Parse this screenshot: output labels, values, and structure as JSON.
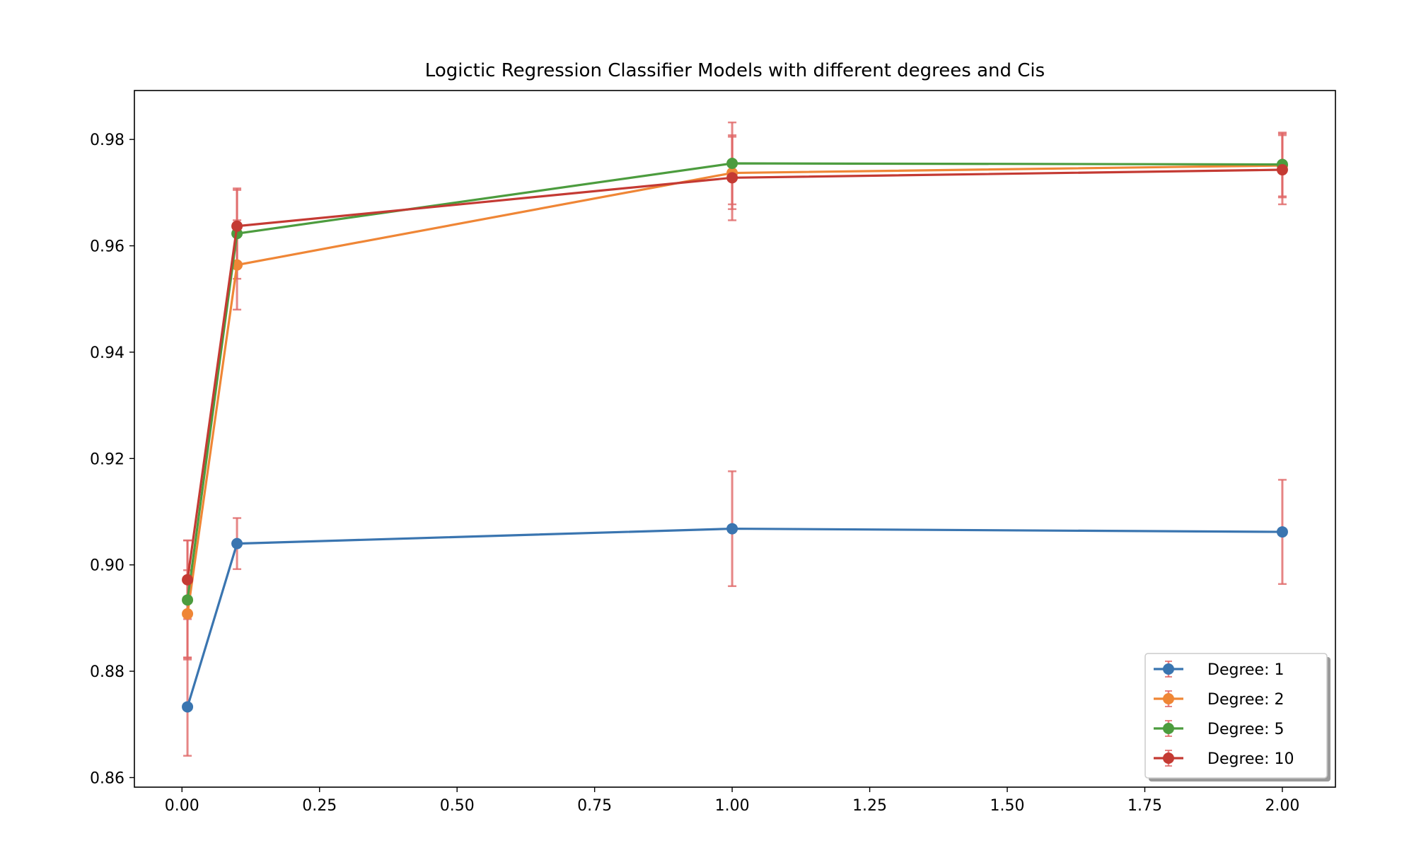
{
  "chart_data": {
    "type": "line",
    "title": "Logictic Regression Classifier Models with different degrees and Cis",
    "xlabel": "",
    "ylabel": "",
    "xlim": [
      -0.0865,
      2.0965
    ],
    "ylim": [
      0.8582,
      0.9892
    ],
    "xticks": [
      0.0,
      0.25,
      0.5,
      0.75,
      1.0,
      1.25,
      1.5,
      1.75,
      2.0
    ],
    "xtick_labels": [
      "0.00",
      "0.25",
      "0.50",
      "0.75",
      "1.00",
      "1.25",
      "1.50",
      "1.75",
      "2.00"
    ],
    "yticks": [
      0.86,
      0.88,
      0.9,
      0.92,
      0.94,
      0.96,
      0.98
    ],
    "ytick_labels": [
      "0.86",
      "0.88",
      "0.90",
      "0.92",
      "0.94",
      "0.96",
      "0.98"
    ],
    "grid": false,
    "legend_position": "bottom-right",
    "error_bar_color": "#e06666",
    "x": [
      0.01,
      0.1,
      1.0,
      2.0
    ],
    "series": [
      {
        "name": "Degree: 1",
        "color": "#3a75b0",
        "values": [
          0.8733,
          0.904,
          0.9068,
          0.9062
        ],
        "errors": [
          0.0092,
          0.0048,
          0.0108,
          0.0098
        ]
      },
      {
        "name": "Degree: 2",
        "color": "#ef8636",
        "values": [
          0.8908,
          0.9564,
          0.9737,
          0.9751
        ],
        "errors": [
          0.0082,
          0.0084,
          0.0068,
          0.006
        ]
      },
      {
        "name": "Degree: 5",
        "color": "#4c9c3e",
        "values": [
          0.8934,
          0.9623,
          0.9755,
          0.9753
        ],
        "errors": [
          0.0112,
          0.0085,
          0.0077,
          0.006
        ]
      },
      {
        "name": "Degree: 10",
        "color": "#c43a33",
        "values": [
          0.8972,
          0.9637,
          0.9728,
          0.9743
        ],
        "errors": [
          0.0074,
          0.0068,
          0.008,
          0.0065
        ]
      }
    ]
  }
}
